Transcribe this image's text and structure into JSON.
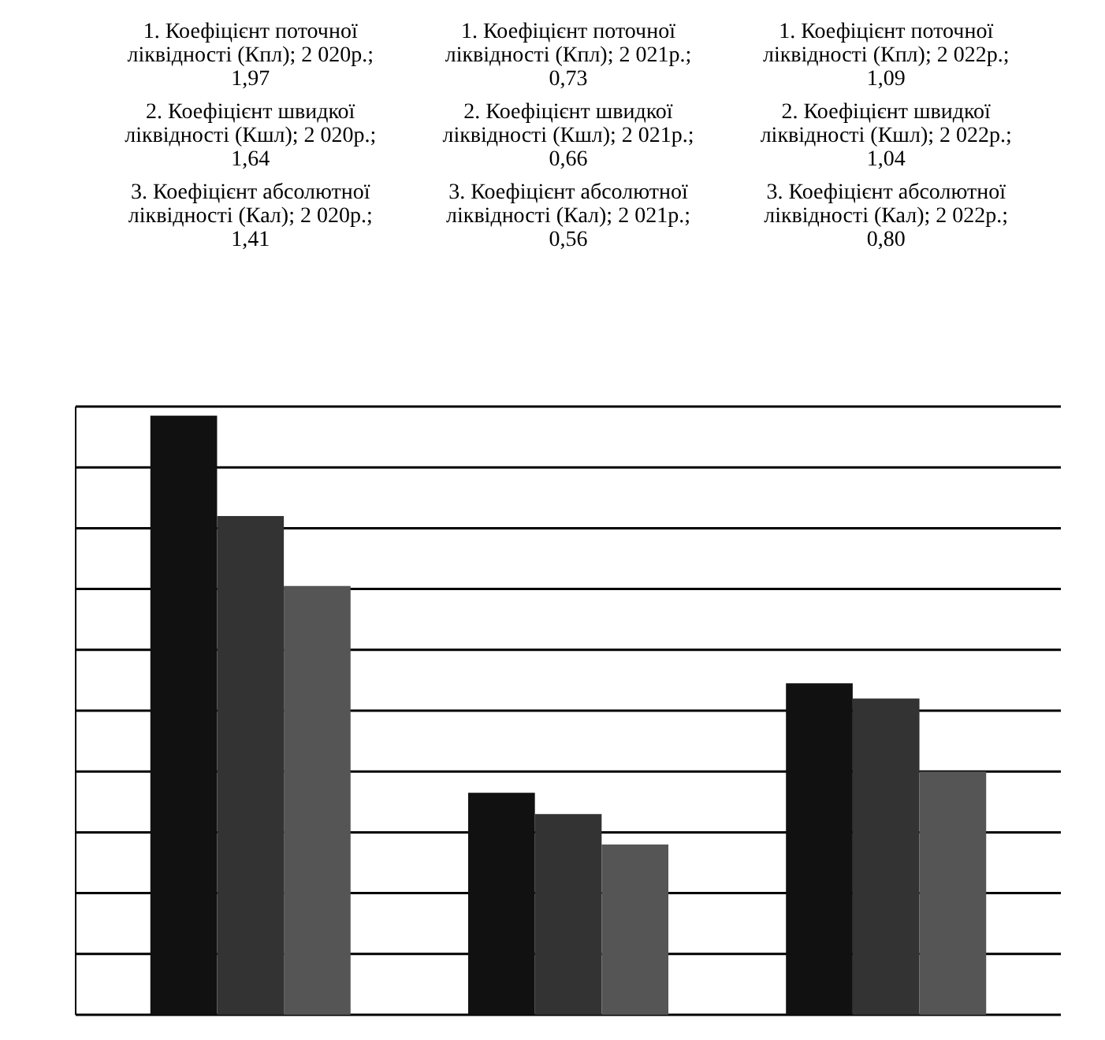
{
  "chart_data": {
    "type": "bar",
    "categories": [
      null,
      null,
      null
    ],
    "series": [
      {
        "color": "#111111",
        "values": [
          1.97,
          0.73,
          1.09
        ],
        "value_labels": [
          "1. Коефіцієнт поточної ліквідності (Кпл); 2 020р.; 1,97",
          "1. Коефіцієнт поточної ліквідності (Кпл); 2 021р.; 0,73",
          "1. Коефіцієнт поточної ліквідності (Кпл); 2 022р.; 1,09"
        ]
      },
      {
        "color": "#333333",
        "values": [
          1.64,
          0.66,
          1.04
        ],
        "value_labels": [
          "2. Коефіцієнт швидкої ліквідності (Кшл); 2 020р.; 1,64",
          "2. Коефіцієнт швидкої ліквідності (Кшл); 2 021р.; 0,66",
          "2. Коефіцієнт швидкої ліквідності (Кшл); 2 022р.; 1,04"
        ]
      },
      {
        "color": "#555555",
        "values": [
          1.41,
          0.56,
          0.8
        ],
        "value_labels": [
          "3. Коефіцієнт абсолютної ліквідності (Кал); 2 020р.; 1,41",
          "3. Коефіцієнт абсолютної ліквідності (Кал); 2 021р.; 0,56",
          "3. Коефіцієнт абсолютної ліквідності (Кал); 2 022р.; 0,80"
        ]
      }
    ],
    "ylim": [
      0,
      2.0
    ],
    "yticks": [
      {
        "value": 0,
        "label": null
      },
      {
        "value": 0.2,
        "label": null
      },
      {
        "value": 0.4,
        "label": null
      },
      {
        "value": 0.6,
        "label": null
      },
      {
        "value": 0.8,
        "label": null
      },
      {
        "value": 1.0,
        "label": null
      },
      {
        "value": 1.2,
        "label": null
      },
      {
        "value": 1.4,
        "label": null
      },
      {
        "value": 1.6,
        "label": null
      },
      {
        "value": 1.8,
        "label": null
      },
      {
        "value": 2.0,
        "label": null
      }
    ],
    "grid": true
  }
}
